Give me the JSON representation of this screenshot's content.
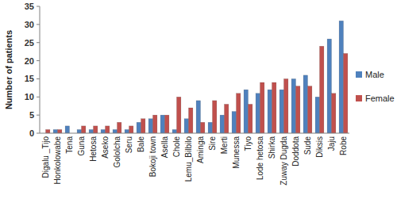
{
  "chart_data": {
    "type": "bar",
    "y_label": "Number of patients",
    "categories": [
      "Digalu _Tijo",
      "Honkolowabe",
      "Tena",
      "Guna",
      "Hetosa",
      "Aseko",
      "Gololcha",
      "Seru",
      "Bale",
      "Bokoji town",
      "Asella",
      "Chole",
      "Lemu_Bilbilo",
      "Aminga",
      "Sire",
      "Merti",
      "Munessa",
      "Tiyo",
      "Lode hetosa",
      "Shirka",
      "Zuway Dugda",
      "Doddota",
      "Sude",
      "Diksis",
      "Jaju",
      "Robe"
    ],
    "series": [
      {
        "name": "Male",
        "color": "#4f81bd",
        "values": [
          0,
          1,
          2,
          1,
          1,
          1,
          1,
          1,
          3,
          4,
          5,
          1,
          4,
          9,
          3,
          5,
          6,
          12,
          11,
          12,
          12,
          15,
          16,
          10,
          26,
          31
        ]
      },
      {
        "name": "Female",
        "color": "#c0504d",
        "values": [
          1,
          1,
          0,
          2,
          2,
          2,
          3,
          2,
          4,
          5,
          5,
          10,
          7,
          3,
          9,
          8,
          11,
          8,
          14,
          14,
          15,
          13,
          13,
          24,
          11,
          22
        ]
      }
    ],
    "ylim": [
      0,
      35
    ],
    "yticks": [
      0,
      5,
      10,
      15,
      20,
      25,
      30,
      35
    ],
    "grid": false,
    "legend": "right"
  }
}
